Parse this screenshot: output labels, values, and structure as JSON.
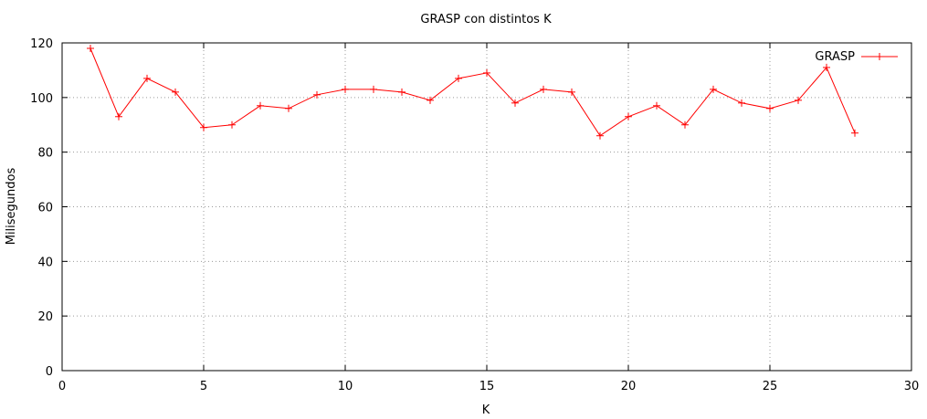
{
  "chart_data": {
    "type": "line",
    "title": "GRASP con distintos K",
    "xlabel": "K",
    "ylabel": "Milisegundos",
    "xlim": [
      0,
      30
    ],
    "ylim": [
      0,
      120
    ],
    "xticks": [
      0,
      5,
      10,
      15,
      20,
      25,
      30
    ],
    "yticks": [
      0,
      20,
      40,
      60,
      80,
      100,
      120
    ],
    "grid": true,
    "legend_position": "top-right",
    "series": [
      {
        "name": "GRASP",
        "color": "#ff0000",
        "marker": "plus",
        "x": [
          1,
          2,
          3,
          4,
          5,
          6,
          7,
          8,
          9,
          10,
          11,
          12,
          13,
          14,
          15,
          16,
          17,
          18,
          19,
          20,
          21,
          22,
          23,
          24,
          25,
          26,
          27,
          28
        ],
        "y": [
          118,
          93,
          107,
          102,
          89,
          90,
          97,
          96,
          101,
          103,
          103,
          102,
          99,
          107,
          109,
          98,
          103,
          102,
          86,
          93,
          97,
          90,
          103,
          98,
          96,
          99,
          111,
          87
        ]
      }
    ]
  }
}
